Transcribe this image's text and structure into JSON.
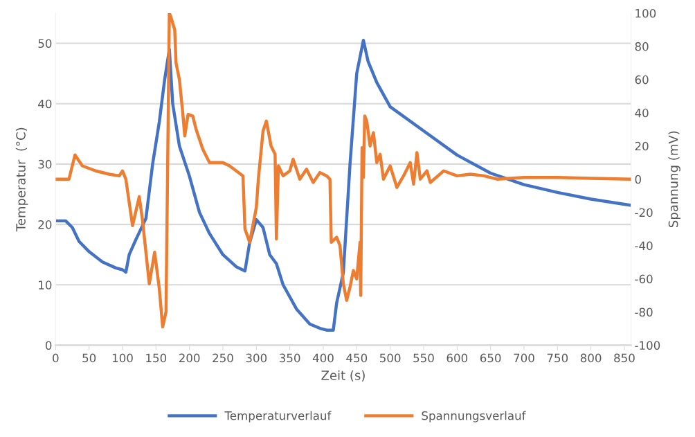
{
  "chart_data": {
    "type": "line",
    "xlabel": "Zeit (s)",
    "ylabel": "Temperatur  (°C)",
    "y2label": "Spannung (mV)",
    "xlim": [
      0,
      860
    ],
    "xticks": [
      0,
      50,
      100,
      150,
      200,
      250,
      300,
      350,
      400,
      450,
      500,
      550,
      600,
      650,
      700,
      750,
      800,
      850
    ],
    "ylim": [
      0,
      55
    ],
    "yticks": [
      0,
      10,
      20,
      30,
      40,
      50
    ],
    "y2lim": [
      -100,
      100
    ],
    "y2ticks": [
      -100,
      -80,
      -60,
      -40,
      -20,
      0,
      20,
      40,
      60,
      80,
      100
    ],
    "grid": "y",
    "legend": "bottom",
    "marker": "none",
    "line_style": "solid",
    "series": [
      {
        "name": "Temperaturverlauf",
        "color": "#4472c4",
        "x": [
          0,
          15,
          25,
          35,
          50,
          70,
          90,
          100,
          105,
          110,
          120,
          135,
          145,
          155,
          163,
          170,
          175,
          185,
          200,
          215,
          230,
          250,
          270,
          283,
          290,
          300,
          310,
          320,
          330,
          340,
          360,
          380,
          395,
          405,
          415,
          420,
          430,
          440,
          450,
          460,
          467,
          480,
          500,
          550,
          600,
          650,
          700,
          750,
          800,
          858
        ],
        "values": [
          20.6,
          20.6,
          19.5,
          17.2,
          15.5,
          13.8,
          12.8,
          12.5,
          12.1,
          15,
          17.5,
          21,
          30,
          37,
          44,
          49,
          40,
          33,
          28,
          22,
          18.5,
          15,
          13,
          12.3,
          17,
          20.8,
          19.5,
          15,
          13.5,
          10,
          6,
          3.5,
          2.8,
          2.5,
          2.5,
          7,
          12,
          30,
          45,
          50.5,
          47,
          43.5,
          39.5,
          35.5,
          31.5,
          28.5,
          26.6,
          25.3,
          24.2,
          23.2
        ]
      },
      {
        "name": "Spannungsverlauf",
        "color": "#ed7d31",
        "axis": "y2",
        "x": [
          0,
          20,
          29,
          40,
          60,
          80,
          95,
          100,
          105,
          115,
          125,
          130,
          140,
          148,
          155,
          160,
          165,
          170,
          172,
          178,
          180,
          185,
          190,
          193,
          198,
          205,
          210,
          220,
          230,
          250,
          260,
          270,
          280,
          283,
          290,
          300,
          303,
          310,
          315,
          322,
          328,
          330,
          333,
          340,
          350,
          355,
          365,
          375,
          385,
          395,
          405,
          410,
          412,
          420,
          425,
          430,
          435,
          440,
          445,
          450,
          455,
          456,
          458,
          460,
          462,
          465,
          470,
          475,
          480,
          485,
          490,
          500,
          510,
          520,
          530,
          535,
          540,
          545,
          555,
          560,
          580,
          600,
          620,
          640,
          660,
          700,
          750,
          800,
          858
        ],
        "values": [
          0,
          0,
          14.6,
          8,
          5,
          3,
          2,
          5,
          0,
          -28,
          -10.5,
          -25,
          -63,
          -44,
          -66,
          -89,
          -80,
          100,
          98,
          90,
          70,
          60,
          40,
          26,
          39,
          38,
          30,
          18,
          10,
          10,
          8,
          5,
          2,
          -30,
          -38,
          -17,
          0,
          29,
          35,
          20,
          15,
          -36,
          8,
          2,
          5,
          12,
          0,
          6,
          -2,
          4,
          2,
          0,
          -38,
          -35,
          -40,
          -63,
          -73,
          -65,
          -55,
          -60,
          -38,
          -70,
          19,
          1,
          38,
          35,
          20,
          28,
          10,
          15,
          0,
          8,
          -5,
          2,
          10,
          -3,
          16,
          0,
          5,
          -2,
          5,
          2,
          3,
          2,
          0,
          1,
          1,
          0.5,
          0
        ]
      }
    ]
  }
}
